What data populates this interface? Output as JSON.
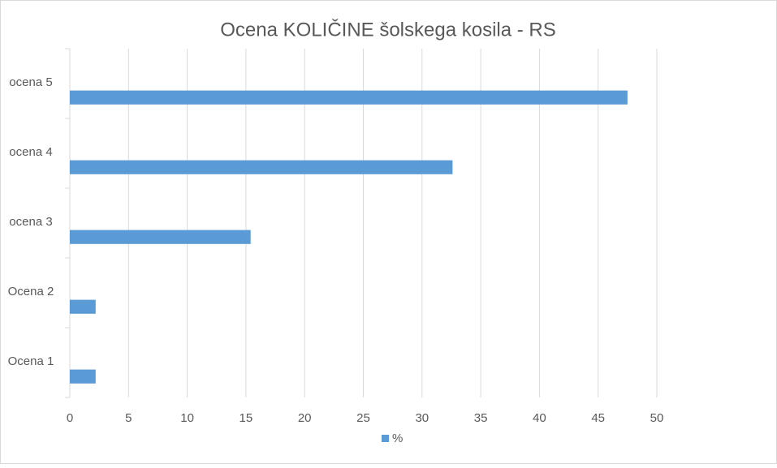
{
  "chart_data": {
    "type": "hbar",
    "title": "Ocena KOLIČINE šolskega kosila - RS",
    "categories": [
      "ocena 5",
      "ocena 4",
      "ocena 3",
      "Ocena 2",
      "Ocena 1"
    ],
    "series": [
      {
        "name": "%",
        "color": "#5b9bd5",
        "values": [
          47.5,
          32.6,
          15.4,
          2.2,
          2.2
        ]
      }
    ],
    "xlim": [
      0,
      50
    ],
    "xticks": [
      0,
      5,
      10,
      15,
      20,
      25,
      30,
      35,
      40,
      45,
      50
    ],
    "grid": true,
    "legend": "bottom"
  }
}
